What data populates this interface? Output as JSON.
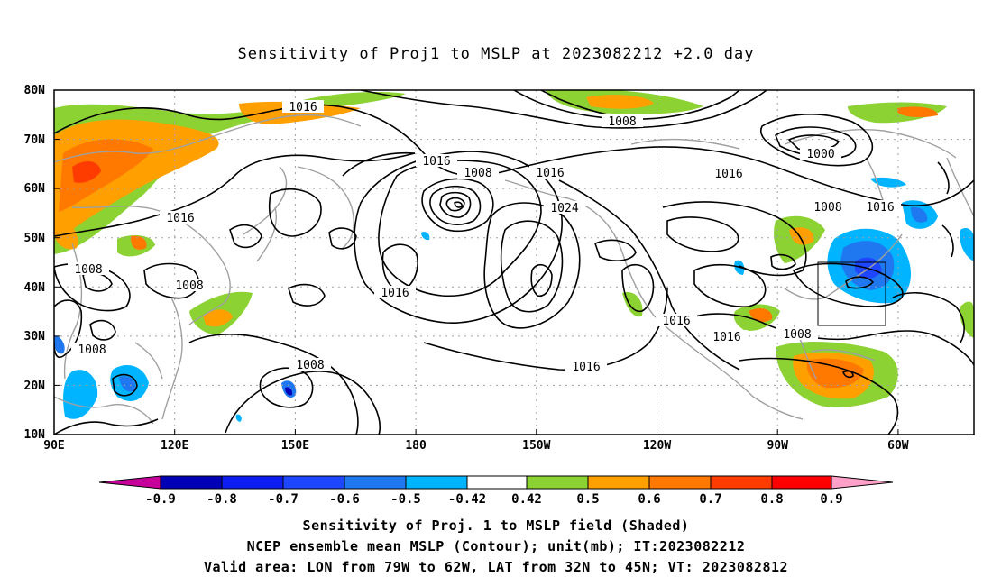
{
  "title": "Sensitivity of Proj1 to MSLP at 2023082212 +2.0 day",
  "lat_labels": [
    "80N",
    "70N",
    "60N",
    "50N",
    "40N",
    "30N",
    "20N",
    "10N"
  ],
  "lon_labels": [
    "90E",
    "120E",
    "150E",
    "180",
    "150W",
    "120W",
    "90W",
    "60W"
  ],
  "contour_labels": [
    "1016",
    "1008",
    "1000",
    "1016",
    "1008",
    "1016",
    "1024",
    "1016",
    "1016",
    "1008",
    "1016",
    "1008",
    "1008",
    "1016",
    "1016",
    "1016",
    "1008",
    "1008"
  ],
  "colorbar": {
    "labels": [
      "-0.9",
      "-0.8",
      "-0.7",
      "-0.6",
      "-0.5",
      "-0.42",
      "0.42",
      "0.5",
      "0.6",
      "0.7",
      "0.8",
      "0.9"
    ],
    "colors": [
      "#0000b4",
      "#0d1cef",
      "#1e46ff",
      "#1f78f0",
      "#00b4ff",
      "#ffffff",
      "#8cd232",
      "#ffa000",
      "#ff7800",
      "#ff3c00",
      "#ff0000"
    ],
    "low_arrow_color": "#c8009b",
    "high_arrow_color": "#ffa0c8"
  },
  "footer": {
    "line1": "Sensitivity of Proj. 1 to MSLP field (Shaded)",
    "line2": "NCEP ensemble mean MSLP (Contour); unit(mb); IT:2023082212",
    "line3": "Valid area: LON from 79W to 62W, LAT from 32N to 45N; VT: 2023082812"
  }
}
